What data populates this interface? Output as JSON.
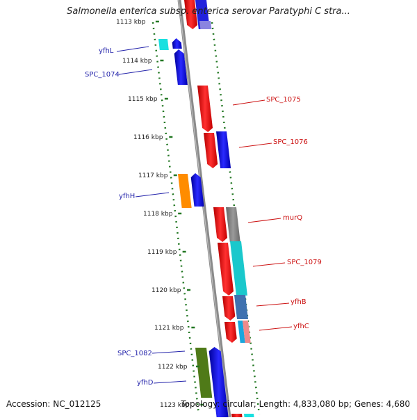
{
  "title": "Salmonella enterica subsp. enterica serovar Paratyphi C stra...",
  "footer": {
    "accession": "Accession: NC_012125",
    "summary": "Topology: circular; Length: 4,833,080 bp; Genes: 4,680"
  },
  "kbp_ticks": [
    "1113 kbp",
    "1114 kbp",
    "1115 kbp",
    "1116 kbp",
    "1117 kbp",
    "1118 kbp",
    "1119 kbp",
    "1120 kbp",
    "1121 kbp",
    "1122 kbp",
    "1123 kbp"
  ],
  "left_labels": [
    "yfhL",
    "SPC_1074",
    "yfhH",
    "SPC_1082",
    "yfhD"
  ],
  "right_labels": [
    "SPC_1075",
    "SPC_1076",
    "murQ",
    "SPC_1079",
    "yfhB",
    "yfhC"
  ],
  "colors": {
    "forward": "#1a1aee",
    "reverse": "#ee1111",
    "left_label": "#2222aa",
    "right_label": "#cc1111",
    "guide_dots": "#227722",
    "axis": "#777777"
  }
}
